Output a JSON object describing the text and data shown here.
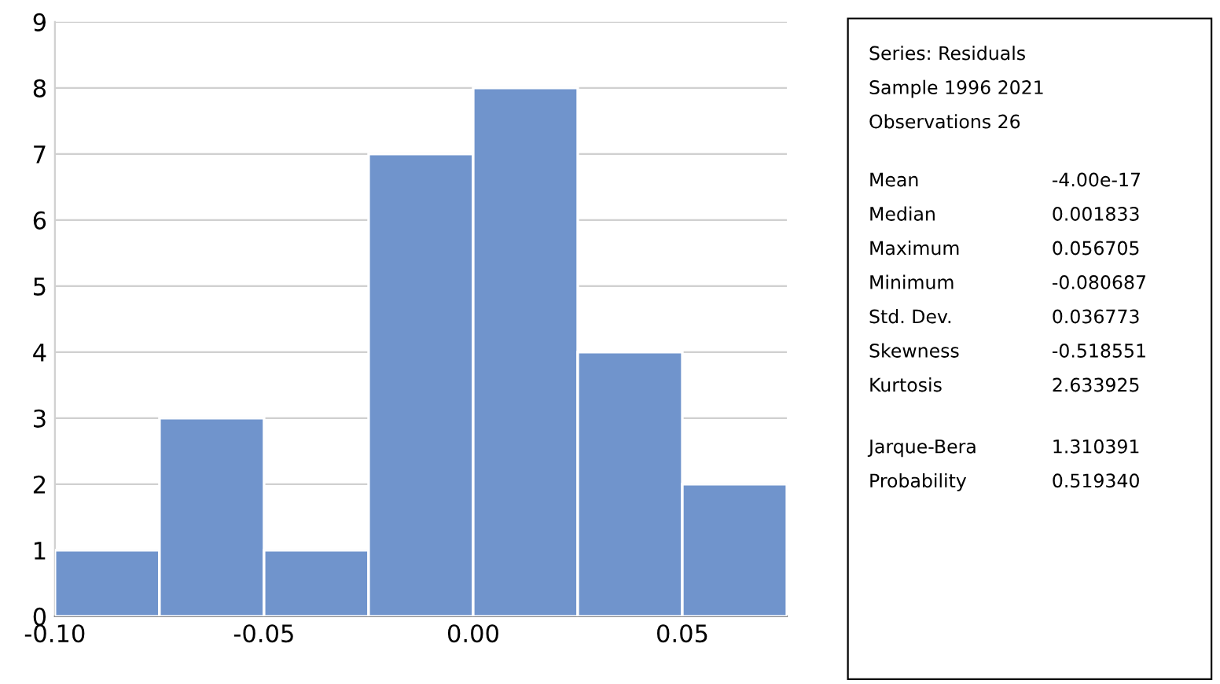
{
  "chart_data": {
    "type": "histogram",
    "bins": [
      -0.1,
      -0.075,
      -0.05,
      -0.025,
      0.0,
      0.025,
      0.05,
      0.075
    ],
    "values": [
      1,
      3,
      1,
      7,
      8,
      4,
      2
    ],
    "color": "#7094cc",
    "xlim": [
      -0.1,
      0.075
    ],
    "xticks": [
      {
        "value": -0.1,
        "label": "-0.10"
      },
      {
        "value": -0.05,
        "label": "-0.05"
      },
      {
        "value": 0.0,
        "label": "0.00"
      },
      {
        "value": 0.05,
        "label": "0.05"
      }
    ],
    "ylim": [
      0,
      9
    ],
    "yticks": [
      0,
      1,
      2,
      3,
      4,
      5,
      6,
      7,
      8,
      9
    ],
    "grid": "y",
    "annotations": [
      "Series: Residuals",
      "Sample 1996 2021",
      "Observations 26",
      "Mean",
      "-4.00e-17",
      "Median",
      "0.001833",
      "Maximum",
      "0.056705",
      "Minimum",
      "-0.080687",
      "Std. Dev.",
      "0.036773",
      "Skewness",
      "-0.518551",
      "Kurtosis",
      "2.633925",
      "Jarque-Bera",
      "1.310391",
      "Probability",
      "0.519340"
    ]
  }
}
